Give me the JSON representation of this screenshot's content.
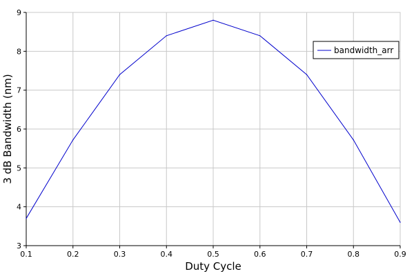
{
  "chart_data": {
    "type": "line",
    "title": "",
    "xlabel": "Duty Cycle",
    "ylabel": "3 dB Bandwidth (nm)",
    "xlim": [
      0.1,
      0.9
    ],
    "ylim": [
      3,
      9
    ],
    "xticks": [
      "0.1",
      "0.2",
      "0.3",
      "0.4",
      "0.5",
      "0.6",
      "0.7",
      "0.8",
      "0.9"
    ],
    "yticks": [
      "3",
      "4",
      "5",
      "6",
      "7",
      "8",
      "9"
    ],
    "grid": true,
    "legend_position": "top-right",
    "series": [
      {
        "name": "bandwidth_arr",
        "color": "#0000cc",
        "x": [
          0.1,
          0.2,
          0.3,
          0.4,
          0.5,
          0.6,
          0.7,
          0.8,
          0.9
        ],
        "y": [
          3.7,
          5.72,
          7.4,
          8.4,
          8.8,
          8.4,
          7.4,
          5.72,
          3.6
        ]
      }
    ]
  }
}
